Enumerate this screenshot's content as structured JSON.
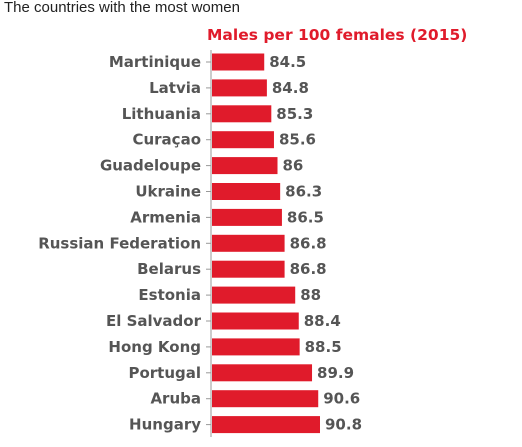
{
  "page": {
    "title": "The countries with the most women"
  },
  "colors": {
    "bar": "#e01b2b",
    "label_text": "#555555",
    "series_title": "#e01b2b",
    "axis": "#999999"
  },
  "chart_data": {
    "type": "bar",
    "orientation": "horizontal",
    "title": "The countries with the most women",
    "subtitle": "Males per 100 females (2015)",
    "categories": [
      "Martinique",
      "Latvia",
      "Lithuania",
      "Curaçao",
      "Guadeloupe",
      "Ukraine",
      "Armenia",
      "Russian Federation",
      "Belarus",
      "Estonia",
      "El Salvador",
      "Hong Kong",
      "Portugal",
      "Aruba",
      "Hungary"
    ],
    "values": [
      84.5,
      84.8,
      85.3,
      85.6,
      86,
      86.3,
      86.5,
      86.8,
      86.8,
      88,
      88.4,
      88.5,
      89.9,
      90.6,
      90.8
    ],
    "value_labels": [
      "84.5",
      "84.8",
      "85.3",
      "85.6",
      "86",
      "86.3",
      "86.5",
      "86.8",
      "86.8",
      "88",
      "88.4",
      "88.5",
      "89.9",
      "90.6",
      "90.8"
    ],
    "series": [
      {
        "name": "Males per 100 females (2015)",
        "values": [
          84.5,
          84.8,
          85.3,
          85.6,
          86,
          86.3,
          86.5,
          86.8,
          86.8,
          88,
          88.4,
          88.5,
          89.9,
          90.6,
          90.8
        ]
      }
    ],
    "xlabel": "",
    "ylabel": "",
    "grid": false,
    "legend": "none"
  }
}
